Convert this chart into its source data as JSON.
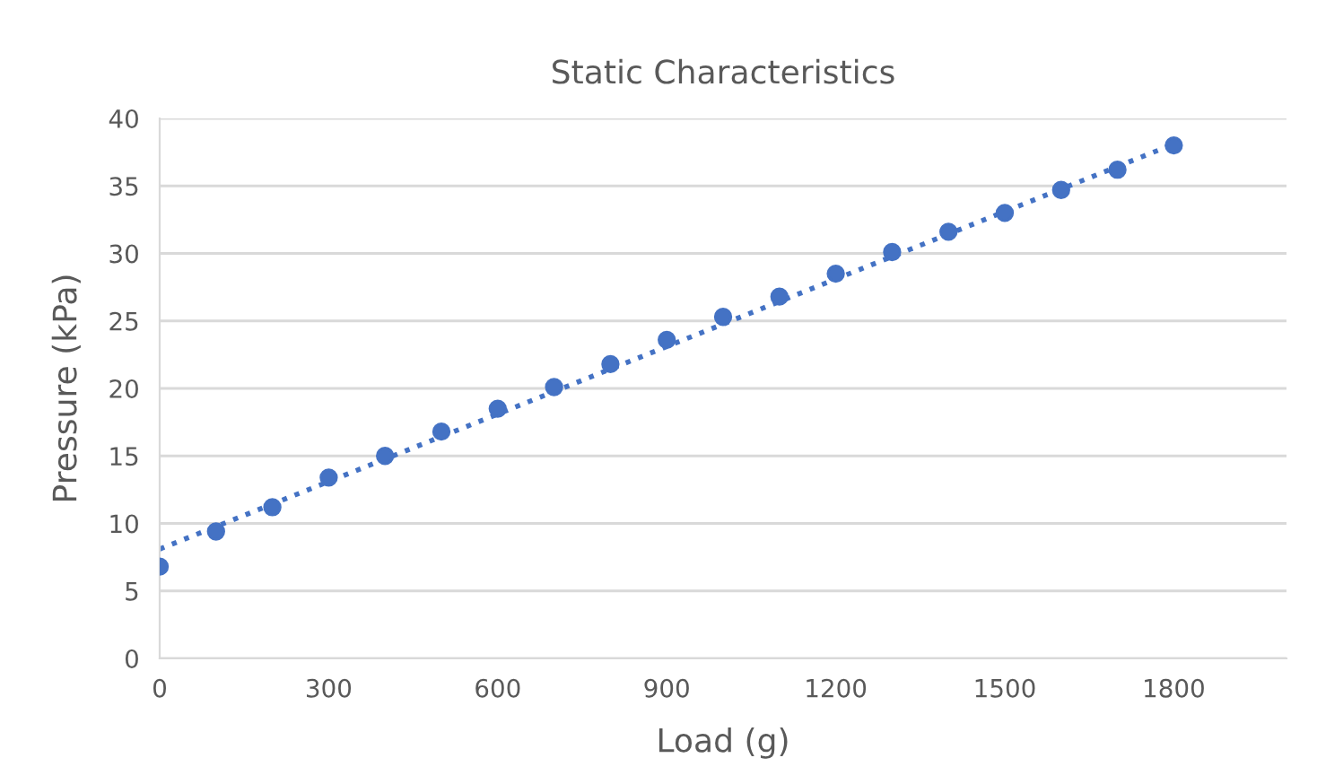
{
  "chart_data": {
    "type": "scatter",
    "title": "Static Characteristics",
    "xlabel": "Load (g)",
    "ylabel": "Pressure (kPa)",
    "xlim": [
      0,
      2000
    ],
    "xticks": [
      0,
      300,
      600,
      900,
      1200,
      1500,
      1800
    ],
    "ylim": [
      0,
      40
    ],
    "yticks": [
      0,
      5,
      10,
      15,
      20,
      25,
      30,
      35,
      40
    ],
    "grid": "y",
    "series": [
      {
        "color": "#4472c4",
        "marker": "circle",
        "x": [
          0,
          100,
          200,
          300,
          400,
          500,
          600,
          700,
          800,
          900,
          1000,
          1100,
          1200,
          1300,
          1400,
          1500,
          1600,
          1700,
          1800
        ],
        "values": [
          6.8,
          9.4,
          11.2,
          13.4,
          15.0,
          16.8,
          18.5,
          20.1,
          21.8,
          23.6,
          25.3,
          26.8,
          28.5,
          30.1,
          31.6,
          33.0,
          34.7,
          36.2,
          38.0
        ]
      },
      {
        "type": "line",
        "color": "#4472c4",
        "line_style": "dotted",
        "x": [
          0,
          1800
        ],
        "values": [
          8.1,
          38.1
        ]
      }
    ]
  }
}
